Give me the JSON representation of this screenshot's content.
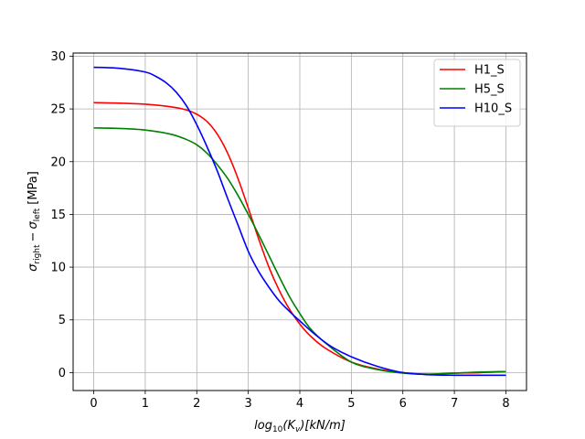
{
  "chart_data": {
    "type": "line",
    "xlabel": "log10(Kv)[kN/m]",
    "xlabel_parts": {
      "pre": "log",
      "sub": "10",
      "mid": "(K",
      "sub2": "v",
      "post": ")[kN/m]"
    },
    "ylabel": "σright − σleft [MPa]",
    "ylabel_parts": {
      "sigma1": "σ",
      "sub1": "right",
      "minus": "−",
      "sigma2": "σ",
      "sub2": "left",
      "unit": "[MPa]"
    },
    "xlim": [
      -0.4,
      8.4
    ],
    "ylim": [
      -1.7,
      30.3
    ],
    "x_ticks": [
      0,
      1,
      2,
      3,
      4,
      5,
      6,
      7,
      8
    ],
    "x_tick_labels": [
      "0",
      "1",
      "2",
      "3",
      "4",
      "5",
      "6",
      "7",
      "8"
    ],
    "y_ticks": [
      0,
      5,
      10,
      15,
      20,
      25,
      30
    ],
    "y_tick_labels": [
      "0",
      "5",
      "10",
      "15",
      "20",
      "25",
      "30"
    ],
    "grid": true,
    "legend_position": "top-right",
    "series": [
      {
        "name": "H1_S",
        "color": "#ff0000",
        "x": [
          0,
          0.5,
          1,
          1.5,
          1.8,
          2,
          2.2,
          2.4,
          2.6,
          2.8,
          3,
          3.2,
          3.4,
          3.6,
          3.8,
          4,
          4.2,
          4.5,
          5,
          5.5,
          6,
          6.5,
          7,
          7.5,
          8
        ],
        "y": [
          25.6,
          25.55,
          25.45,
          25.2,
          24.9,
          24.5,
          23.8,
          22.6,
          20.8,
          18.4,
          15.6,
          12.7,
          10.0,
          7.8,
          6.0,
          4.6,
          3.5,
          2.3,
          1.0,
          0.35,
          0.0,
          -0.15,
          -0.05,
          0.0,
          0.1
        ]
      },
      {
        "name": "H5_S",
        "color": "#008000",
        "x": [
          0,
          0.5,
          1,
          1.5,
          1.8,
          2,
          2.2,
          2.4,
          2.6,
          2.8,
          3,
          3.2,
          3.4,
          3.6,
          3.8,
          4,
          4.2,
          4.5,
          5,
          5.5,
          6,
          6.5,
          7,
          7.5,
          8
        ],
        "y": [
          23.2,
          23.15,
          23.0,
          22.6,
          22.1,
          21.6,
          20.8,
          19.7,
          18.4,
          16.8,
          15.0,
          13.1,
          11.1,
          9.1,
          7.2,
          5.6,
          4.2,
          2.8,
          1.0,
          0.3,
          -0.05,
          -0.15,
          -0.05,
          0.05,
          0.1
        ]
      },
      {
        "name": "H10_S",
        "color": "#0000ff",
        "x": [
          0,
          0.5,
          1,
          1.2,
          1.4,
          1.6,
          1.8,
          2,
          2.2,
          2.4,
          2.6,
          2.8,
          3,
          3.2,
          3.4,
          3.6,
          3.8,
          4,
          4.3,
          4.6,
          5,
          5.5,
          6,
          6.5,
          7,
          7.5,
          8
        ],
        "y": [
          28.95,
          28.85,
          28.5,
          28.1,
          27.5,
          26.6,
          25.3,
          23.5,
          21.4,
          19.1,
          16.5,
          14.0,
          11.5,
          9.6,
          8.1,
          6.8,
          5.8,
          4.9,
          3.6,
          2.5,
          1.5,
          0.6,
          0.0,
          -0.2,
          -0.25,
          -0.25,
          -0.25
        ]
      }
    ]
  }
}
